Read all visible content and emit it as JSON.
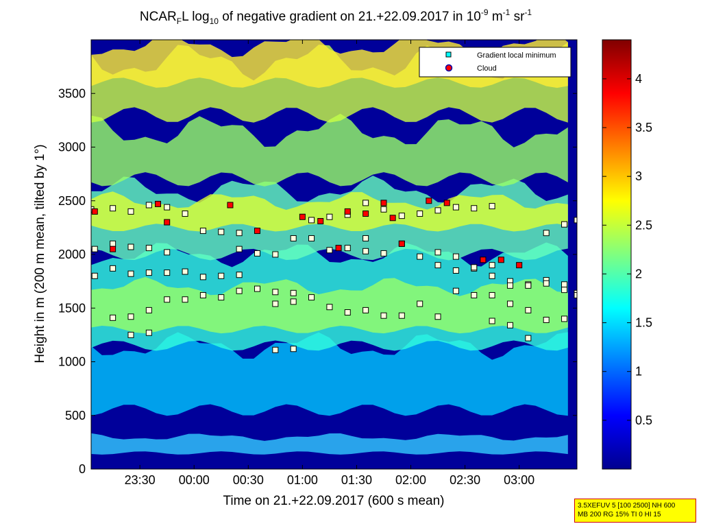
{
  "chart_data": {
    "type": "heatmap",
    "title": {
      "a": "NCAR",
      "b": "F",
      "c": "L log",
      "d": "10",
      "e": " of negative gradient on 21.+22.09.2017 in 10",
      "f": "-9",
      "g": " m",
      "h": "-1",
      "i": " sr",
      "j": "-1"
    },
    "xlabel": "Time on 21.+22.09.2017 (600 s mean)",
    "ylabel": "Height in m (200 m mean, tilted by 1°)",
    "x_ticks": [
      "23:30",
      "00:00",
      "00:30",
      "01:00",
      "01:30",
      "02:00",
      "02:30",
      "03:00"
    ],
    "x_tick_minutes": [
      -30,
      0,
      30,
      60,
      90,
      120,
      150,
      180
    ],
    "xlim_minutes": [
      -57,
      212
    ],
    "y_ticks": [
      "0",
      "500",
      "1000",
      "1500",
      "2000",
      "2500",
      "3000",
      "3500"
    ],
    "ylim": [
      0,
      4000
    ],
    "colorbar": {
      "ticks": [
        "0.5",
        "1",
        "1.5",
        "2",
        "2.5",
        "3",
        "3.5",
        "4"
      ],
      "range": [
        0,
        4.4
      ],
      "colormap": "jet"
    },
    "legend": {
      "position": "top-right",
      "entries": [
        "Gradient local minimum",
        "Cloud"
      ]
    },
    "series": [
      {
        "name": "Gradient local minimum",
        "marker": "square",
        "color": "#00ffff",
        "layers": [
          {
            "x": [
              -57,
              -45,
              -35,
              -25,
              -15,
              -5,
              5,
              15,
              25
            ],
            "y": [
              2420,
              2430,
              2400,
              2460,
              2440,
              2380,
              2220,
              2210,
              2200
            ]
          },
          {
            "x": [
              -55,
              -45,
              -35,
              -25,
              -15,
              -5,
              5,
              15,
              25
            ],
            "y": [
              1800,
              1870,
              1820,
              1830,
              1830,
              1840,
              1790,
              1800,
              1810
            ]
          },
          {
            "x": [
              -55,
              -45,
              -35,
              -25,
              -15
            ],
            "y": [
              2050,
              2100,
              2070,
              2060,
              2020
            ]
          },
          {
            "x": [
              -45,
              -35,
              -25,
              -15,
              -5,
              5,
              15,
              25,
              35,
              45,
              55
            ],
            "y": [
              1410,
              1420,
              1480,
              1580,
              1580,
              1620,
              1600,
              1660,
              1680,
              1650,
              1640
            ]
          },
          {
            "x": [
              -35,
              -25
            ],
            "y": [
              1250,
              1270
            ]
          },
          {
            "x": [
              25,
              35,
              45,
              55,
              65,
              75,
              85,
              95
            ],
            "y": [
              2050,
              2010,
              2000,
              2150,
              2150,
              2040,
              2060,
              2030
            ]
          },
          {
            "x": [
              45,
              55,
              65,
              75,
              85,
              95,
              105,
              115,
              125,
              135,
              145,
              155,
              165,
              175,
              185,
              195,
              205
            ],
            "y": [
              1540,
              1560,
              1600,
              1510,
              1460,
              1480,
              1430,
              1430,
              1540,
              1420,
              1660,
              1620,
              1620,
              1540,
              1480,
              1390,
              1400
            ]
          },
          {
            "x": [
              45,
              55
            ],
            "y": [
              1110,
              1120
            ]
          },
          {
            "x": [
              65,
              75,
              85,
              95,
              105,
              115,
              125,
              135,
              145,
              155,
              165
            ],
            "y": [
              2320,
              2350,
              2370,
              2480,
              2420,
              2360,
              2380,
              2410,
              2440,
              2430,
              2450
            ]
          },
          {
            "x": [
              95,
              105,
              115,
              125,
              135,
              145,
              155,
              165
            ],
            "y": [
              2150,
              2010,
              2100,
              1980,
              1900,
              1850,
              1870,
              1900
            ]
          },
          {
            "x": [
              135,
              145,
              155,
              165,
              175,
              185,
              195,
              205,
              212
            ],
            "y": [
              2020,
              1980,
              1880,
              1800,
              1750,
              1720,
              1760,
              1720,
              1640
            ]
          },
          {
            "x": [
              175,
              185,
              195,
              205,
              212
            ],
            "y": [
              1710,
              1710,
              1730,
              1670,
              1620
            ]
          },
          {
            "x": [
              195,
              205,
              212
            ],
            "y": [
              2200,
              2280,
              2320
            ]
          },
          {
            "x": [
              165,
              175,
              185
            ],
            "y": [
              1380,
              1340,
              1220
            ]
          }
        ]
      },
      {
        "name": "Cloud",
        "marker": "circle",
        "color": "#ff0000",
        "x": [
          -55,
          -45,
          -20,
          -15,
          20,
          35,
          60,
          70,
          80,
          85,
          95,
          105,
          110,
          115,
          130,
          140,
          160,
          170,
          180
        ],
        "y": [
          2400,
          2050,
          2470,
          2300,
          2460,
          2220,
          2350,
          2310,
          2060,
          2400,
          2380,
          2480,
          2340,
          2100,
          2500,
          2480,
          1950,
          1950,
          1900
        ]
      }
    ]
  }
}
